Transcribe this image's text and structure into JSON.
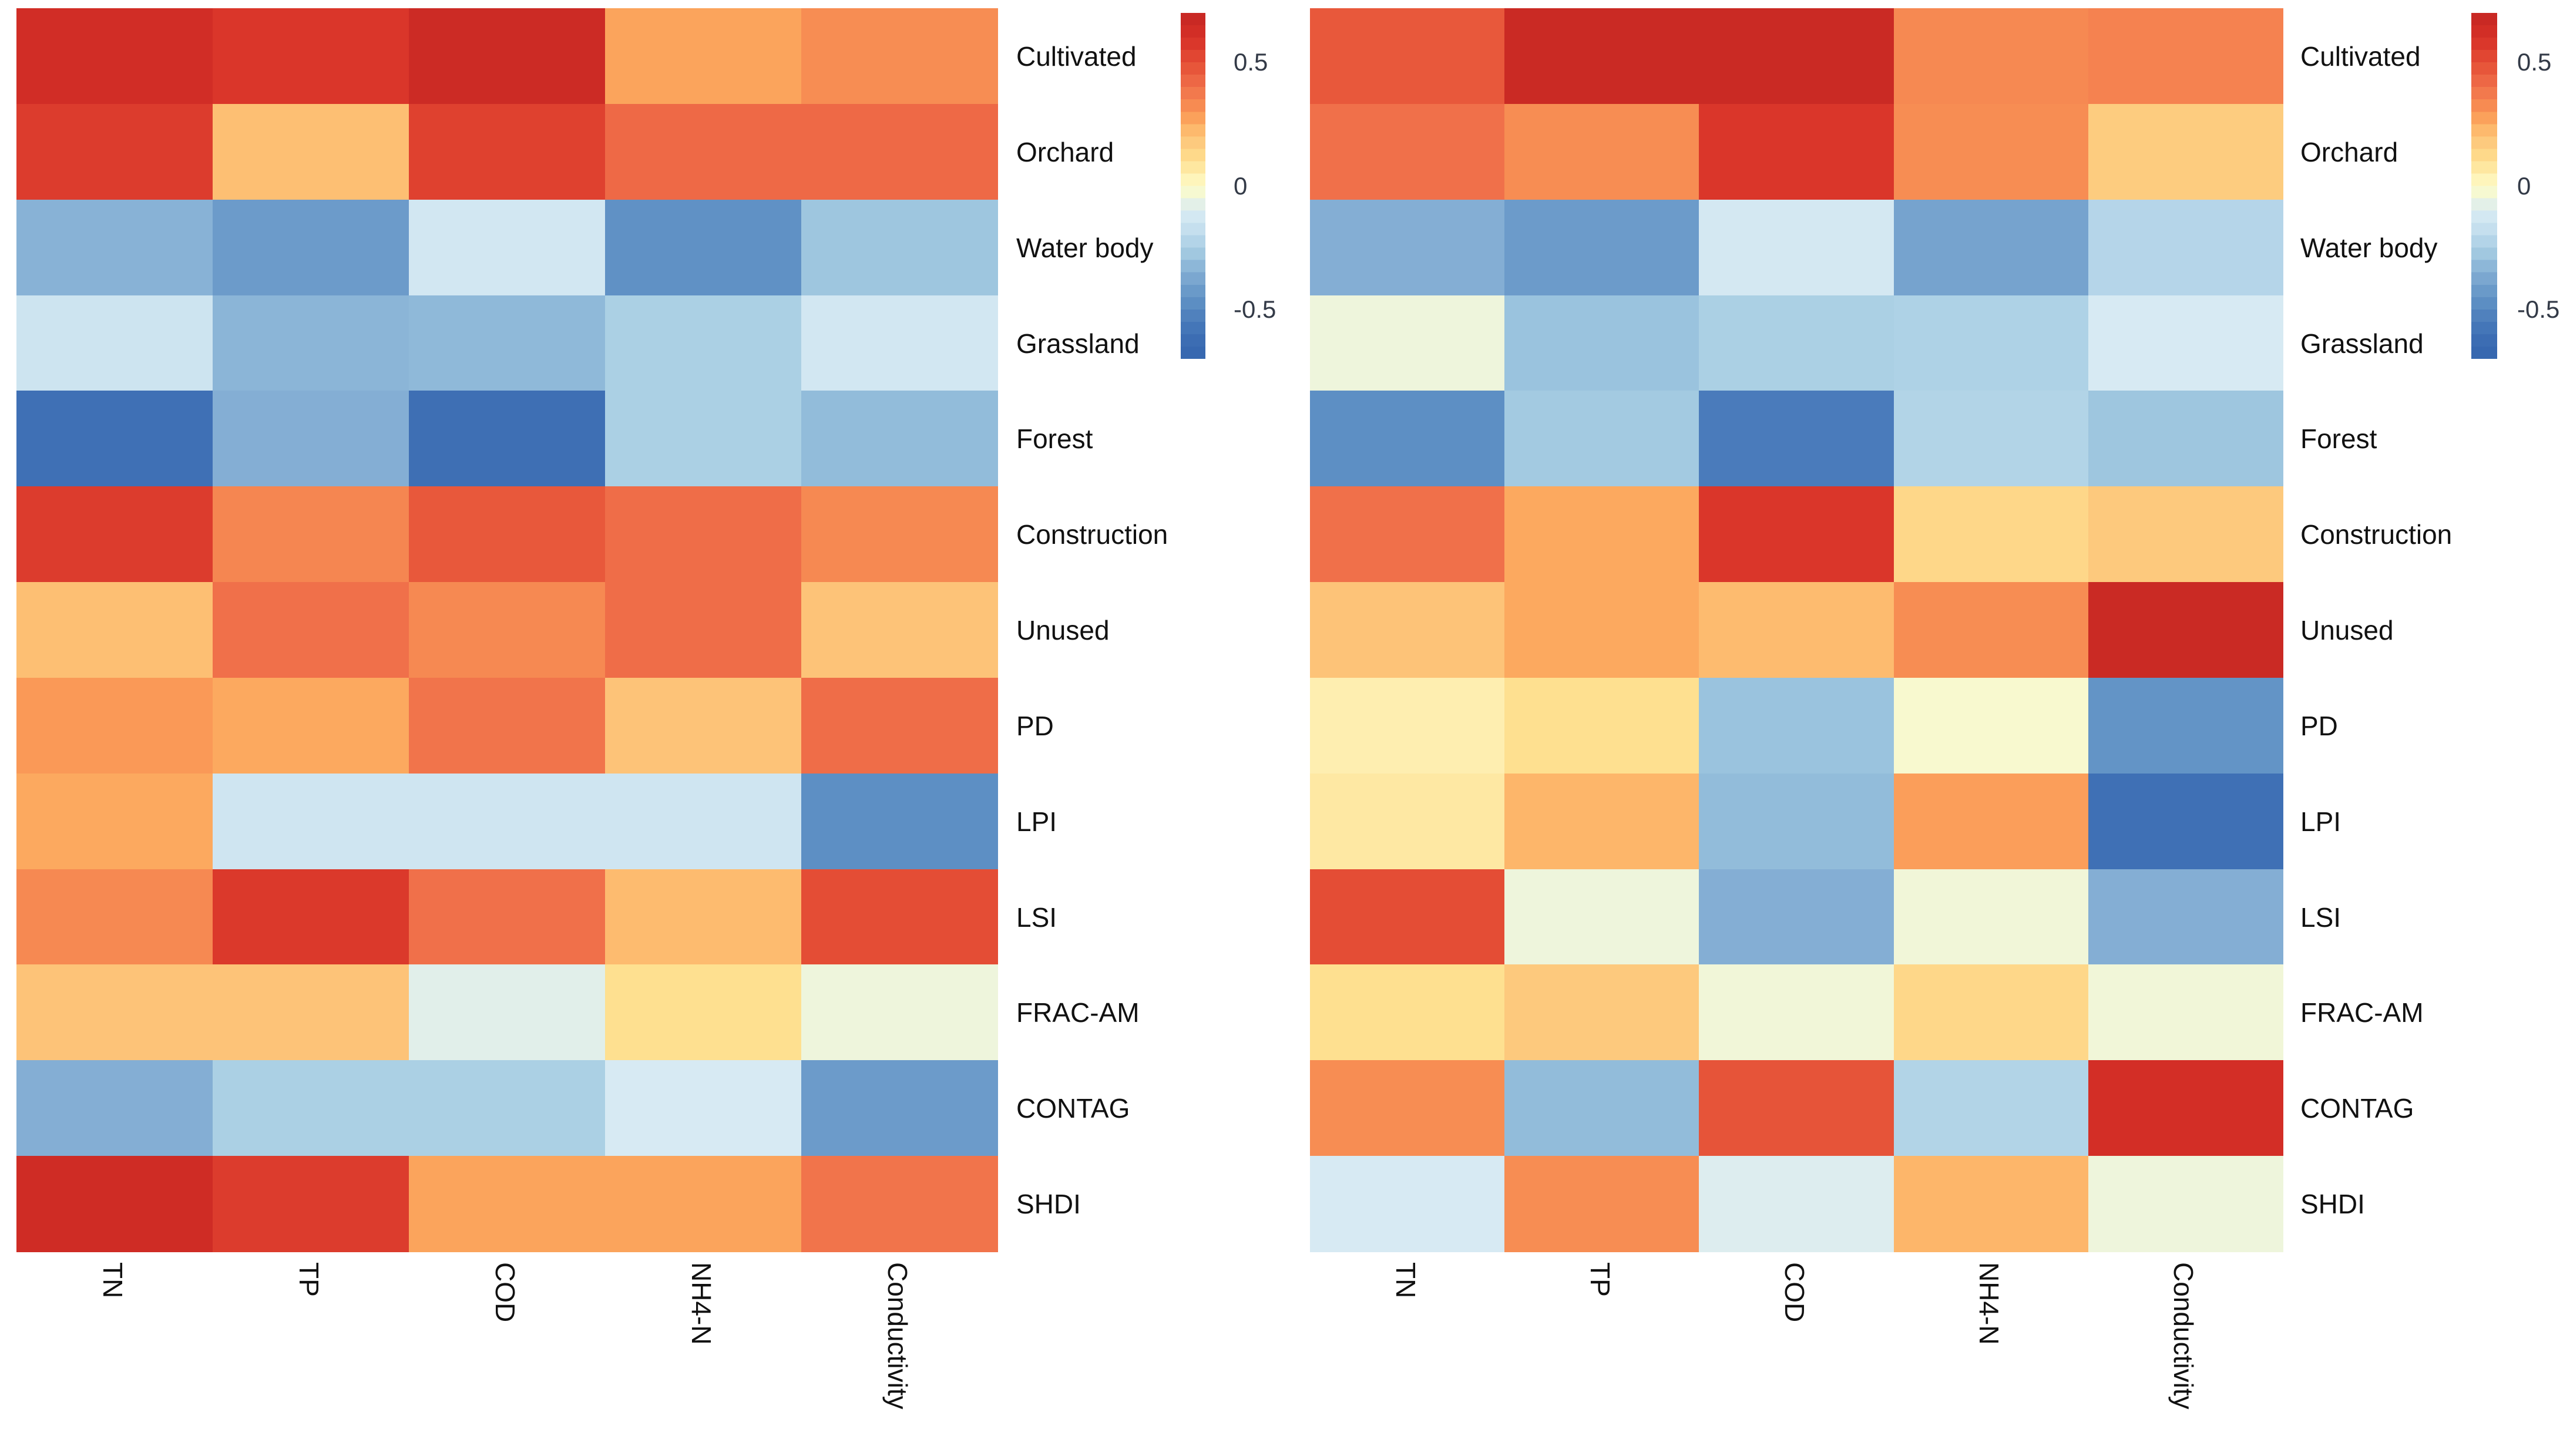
{
  "figure": {
    "background": "#ffffff",
    "description": "Two side-by-side correlation heatmaps of land-use / landscape metrics vs water quality parameters"
  },
  "colormap": {
    "name": "RdYlBu-reversed",
    "stops": [
      {
        "value": 0.7,
        "color": "#c42723"
      },
      {
        "value": 0.6,
        "color": "#d73027"
      },
      {
        "value": 0.5,
        "color": "#e44d35"
      },
      {
        "value": 0.4,
        "color": "#f0704a"
      },
      {
        "value": 0.3,
        "color": "#f99455"
      },
      {
        "value": 0.25,
        "color": "#fdae61"
      },
      {
        "value": 0.2,
        "color": "#fdc378"
      },
      {
        "value": 0.1,
        "color": "#fee090"
      },
      {
        "value": 0.05,
        "color": "#feeeb0"
      },
      {
        "value": 0.0,
        "color": "#fefcc6"
      },
      {
        "value": -0.05,
        "color": "#eef5dc"
      },
      {
        "value": -0.1,
        "color": "#d9ebf4"
      },
      {
        "value": -0.15,
        "color": "#cde4f0"
      },
      {
        "value": -0.2,
        "color": "#bcd9ec"
      },
      {
        "value": -0.25,
        "color": "#abd0e4"
      },
      {
        "value": -0.3,
        "color": "#96c0dc"
      },
      {
        "value": -0.35,
        "color": "#84aed4"
      },
      {
        "value": -0.4,
        "color": "#72a0cc"
      },
      {
        "value": -0.45,
        "color": "#6394c6"
      },
      {
        "value": -0.5,
        "color": "#5587c0"
      },
      {
        "value": -0.6,
        "color": "#3f70b5"
      },
      {
        "value": -0.7,
        "color": "#3465ae"
      }
    ]
  },
  "chart_data": [
    {
      "type": "heatmap",
      "panel": "left",
      "title": "",
      "xlabel": "",
      "ylabel": "",
      "rows": [
        "Cultivated",
        "Orchard",
        "Water body",
        "Grassland",
        "Forest",
        "Construction",
        "Unused",
        "PD",
        "LPI",
        "LSI",
        "FRAC-AM",
        "CONTAG",
        "SHDI"
      ],
      "cols": [
        "TN",
        "TP",
        "COD",
        "NH4-N",
        "Conductivity"
      ],
      "vmin": -0.7,
      "vmax": 0.7,
      "values": [
        [
          0.63,
          0.58,
          0.66,
          0.27,
          0.32
        ],
        [
          0.56,
          0.21,
          0.54,
          0.42,
          0.42
        ],
        [
          -0.34,
          -0.42,
          -0.13,
          -0.46,
          -0.28
        ],
        [
          -0.15,
          -0.33,
          -0.32,
          -0.25,
          -0.13
        ],
        [
          -0.6,
          -0.35,
          -0.61,
          -0.25,
          -0.31
        ],
        [
          0.56,
          0.34,
          0.47,
          0.41,
          0.33
        ],
        [
          0.21,
          0.4,
          0.33,
          0.41,
          0.2
        ],
        [
          0.29,
          0.26,
          0.39,
          0.2,
          0.41
        ],
        [
          0.26,
          -0.14,
          -0.14,
          -0.14,
          -0.47
        ],
        [
          0.33,
          0.57,
          0.4,
          0.22,
          0.5
        ],
        [
          0.2,
          0.2,
          -0.08,
          0.1,
          -0.05
        ],
        [
          -0.35,
          -0.25,
          -0.25,
          -0.11,
          -0.42
        ],
        [
          0.64,
          0.56,
          0.27,
          0.27,
          0.39
        ]
      ],
      "colorbar_ticks": [
        {
          "label": "0.5",
          "value": 0.5
        },
        {
          "label": "0",
          "value": 0.0
        },
        {
          "label": "-0.5",
          "value": -0.5
        }
      ]
    },
    {
      "type": "heatmap",
      "panel": "right",
      "title": "",
      "xlabel": "",
      "ylabel": "",
      "rows": [
        "Cultivated",
        "Orchard",
        "Water body",
        "Grassland",
        "Forest",
        "Construction",
        "Unused",
        "PD",
        "LPI",
        "LSI",
        "FRAC-AM",
        "CONTAG",
        "SHDI"
      ],
      "cols": [
        "TN",
        "TP",
        "COD",
        "NH4-N",
        "Conductivity"
      ],
      "vmin": -0.7,
      "vmax": 0.7,
      "values": [
        [
          0.47,
          0.67,
          0.67,
          0.33,
          0.35
        ],
        [
          0.4,
          0.32,
          0.58,
          0.32,
          0.17
        ],
        [
          -0.35,
          -0.42,
          -0.12,
          -0.39,
          -0.22
        ],
        [
          -0.05,
          -0.29,
          -0.25,
          -0.24,
          -0.11
        ],
        [
          -0.47,
          -0.27,
          -0.55,
          -0.23,
          -0.28
        ],
        [
          0.4,
          0.26,
          0.58,
          0.13,
          0.18
        ],
        [
          0.2,
          0.26,
          0.22,
          0.32,
          0.67
        ],
        [
          0.05,
          0.1,
          -0.29,
          -0.02,
          -0.45
        ],
        [
          0.07,
          0.23,
          -0.31,
          0.28,
          -0.6
        ],
        [
          0.5,
          -0.05,
          -0.35,
          -0.04,
          -0.35
        ],
        [
          0.1,
          0.18,
          -0.04,
          0.13,
          -0.04
        ],
        [
          0.32,
          -0.31,
          0.48,
          -0.23,
          0.62
        ],
        [
          -0.11,
          0.32,
          -0.09,
          0.23,
          -0.05
        ]
      ],
      "colorbar_ticks": [
        {
          "label": "0.5",
          "value": 0.5
        },
        {
          "label": "0",
          "value": 0.0
        },
        {
          "label": "-0.5",
          "value": -0.5
        }
      ]
    }
  ]
}
